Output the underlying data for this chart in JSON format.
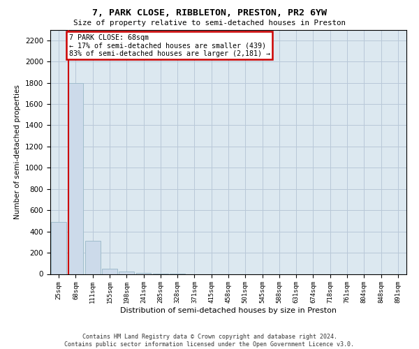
{
  "title": "7, PARK CLOSE, RIBBLETON, PRESTON, PR2 6YW",
  "subtitle": "Size of property relative to semi-detached houses in Preston",
  "xlabel": "Distribution of semi-detached houses by size in Preston",
  "ylabel": "Number of semi-detached properties",
  "footer_line1": "Contains HM Land Registry data © Crown copyright and database right 2024.",
  "footer_line2": "Contains public sector information licensed under the Open Government Licence v3.0.",
  "annotation_title": "7 PARK CLOSE: 68sqm",
  "annotation_line1": "← 17% of semi-detached houses are smaller (439)",
  "annotation_line2": "83% of semi-detached houses are larger (2,181) →",
  "subject_bin_index": 1,
  "bar_color": "#ccdaea",
  "bar_edgecolor": "#a0bccc",
  "vline_color": "#cc0000",
  "annotation_box_edgecolor": "#cc0000",
  "background_color": "#ffffff",
  "axes_facecolor": "#dce8f0",
  "grid_color": "#b8c8d8",
  "categories": [
    "25sqm",
    "68sqm",
    "111sqm",
    "155sqm",
    "198sqm",
    "241sqm",
    "285sqm",
    "328sqm",
    "371sqm",
    "415sqm",
    "458sqm",
    "501sqm",
    "545sqm",
    "588sqm",
    "631sqm",
    "674sqm",
    "718sqm",
    "761sqm",
    "804sqm",
    "848sqm",
    "891sqm"
  ],
  "values": [
    490,
    1800,
    310,
    50,
    20,
    10,
    2,
    1,
    0,
    0,
    0,
    0,
    0,
    0,
    0,
    0,
    0,
    0,
    0,
    0,
    0
  ],
  "ylim": [
    0,
    2300
  ],
  "yticks": [
    0,
    200,
    400,
    600,
    800,
    1000,
    1200,
    1400,
    1600,
    1800,
    2000,
    2200
  ]
}
